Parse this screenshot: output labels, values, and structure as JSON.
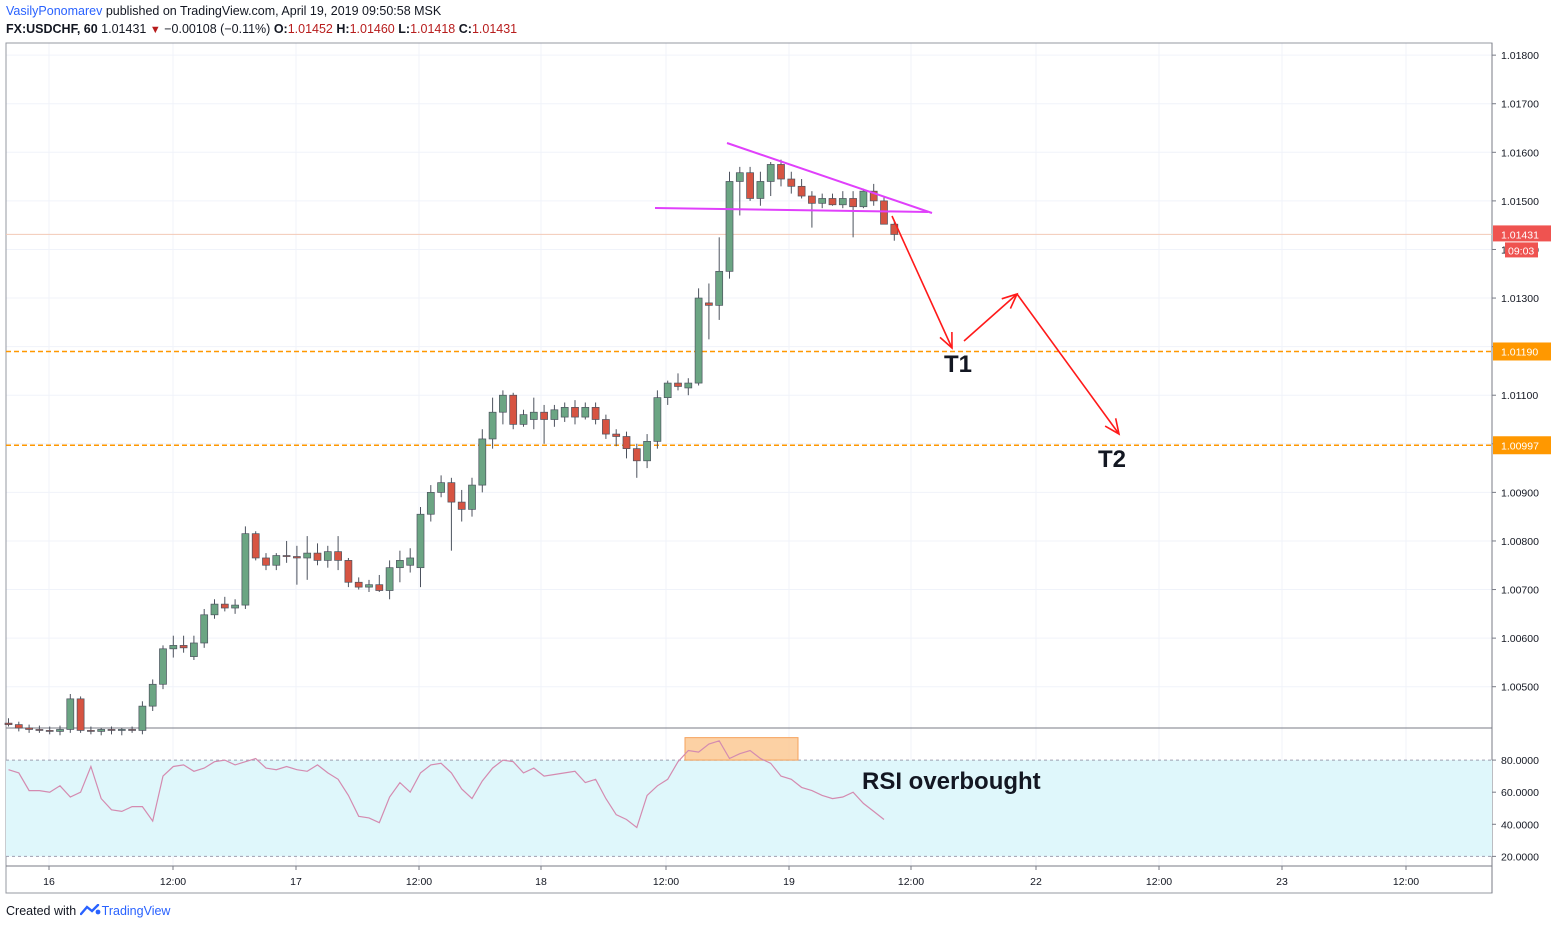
{
  "header": {
    "author": "VasilyPonomarev",
    "published": "published on TradingView.com, April 19, 2019 09:50:58 MSK",
    "symbol": "FX:USDCHF, 60",
    "last": "1.01431",
    "change": "−0.00108 (−0.11%)",
    "o_label": "O:",
    "o": "1.01452",
    "h_label": "H:",
    "h": "1.01460",
    "l_label": "L:",
    "l": "1.01418",
    "c_label": "C:",
    "c": "1.01431"
  },
  "footer": {
    "created": "Created with",
    "brand": "TradingView"
  },
  "chart_data": {
    "type": "candlestick",
    "price_axis": {
      "range": [
        1.00415,
        1.01825
      ],
      "ticks": [
        "1.01800",
        "1.01700",
        "1.01600",
        "1.01500",
        "1.01400",
        "1.01300",
        "1.01200",
        "1.01100",
        "1.01000",
        "1.00900",
        "1.00800",
        "1.00700",
        "1.00600",
        "1.00500"
      ],
      "tick_values": [
        1.018,
        1.017,
        1.016,
        1.015,
        1.014,
        1.013,
        1.012,
        1.011,
        1.01,
        1.009,
        1.008,
        1.007,
        1.006,
        1.005
      ],
      "last_price_tag": "1.01431",
      "countdown_tag": "09:03",
      "level_tags": [
        "1.01190",
        "1.00997"
      ]
    },
    "time_axis": {
      "ticks": [
        "16",
        "12:00",
        "17",
        "12:00",
        "18",
        "12:00",
        "19",
        "12:00",
        "22",
        "12:00",
        "23",
        "12:00"
      ]
    },
    "levels": [
      1.0119,
      1.00997
    ],
    "last_price": 1.01431,
    "candles": [
      [
        1.00425,
        1.00435,
        1.00418,
        1.00422
      ],
      [
        1.00422,
        1.00428,
        1.00408,
        1.00415
      ],
      [
        1.00415,
        1.00422,
        1.00405,
        1.00412
      ],
      [
        1.00412,
        1.0042,
        1.00405,
        1.0041
      ],
      [
        1.0041,
        1.00418,
        1.00402,
        1.00408
      ],
      [
        1.00408,
        1.0042,
        1.004,
        1.00412
      ],
      [
        1.00412,
        1.00485,
        1.00405,
        1.00475
      ],
      [
        1.00475,
        1.0048,
        1.00405,
        1.0041
      ],
      [
        1.0041,
        1.00418,
        1.00402,
        1.00408
      ],
      [
        1.00408,
        1.00415,
        1.004,
        1.00412
      ],
      [
        1.00412,
        1.00418,
        1.00402,
        1.0041
      ],
      [
        1.0041,
        1.00415,
        1.004,
        1.00412
      ],
      [
        1.00412,
        1.00418,
        1.00405,
        1.0041
      ],
      [
        1.0041,
        1.0047,
        1.00402,
        1.0046
      ],
      [
        1.0046,
        1.00515,
        1.0045,
        1.00505
      ],
      [
        1.00505,
        1.00585,
        1.00495,
        1.00578
      ],
      [
        1.00578,
        1.00605,
        1.0056,
        1.00585
      ],
      [
        1.00585,
        1.00605,
        1.0057,
        1.0058
      ],
      [
        1.00562,
        1.00605,
        1.00555,
        1.0059
      ],
      [
        1.0059,
        1.0066,
        1.0058,
        1.00648
      ],
      [
        1.00648,
        1.0068,
        1.0064,
        1.0067
      ],
      [
        1.0067,
        1.00685,
        1.00655,
        1.00662
      ],
      [
        1.00662,
        1.0068,
        1.0065,
        1.00668
      ],
      [
        1.00668,
        1.0083,
        1.0066,
        1.00815
      ],
      [
        1.00815,
        1.0082,
        1.0076,
        1.00765
      ],
      [
        1.00765,
        1.00775,
        1.0074,
        1.0075
      ],
      [
        1.0075,
        1.00775,
        1.0074,
        1.0077
      ],
      [
        1.0077,
        1.008,
        1.00755,
        1.00768
      ],
      [
        1.00768,
        1.0079,
        1.0071,
        1.00765
      ],
      [
        1.00765,
        1.0081,
        1.0072,
        1.00775
      ],
      [
        1.00775,
        1.00795,
        1.0075,
        1.0076
      ],
      [
        1.0076,
        1.0079,
        1.00745,
        1.00778
      ],
      [
        1.00778,
        1.0081,
        1.0074,
        1.0076
      ],
      [
        1.0076,
        1.00765,
        1.00705,
        1.00715
      ],
      [
        1.00715,
        1.00725,
        1.007,
        1.00705
      ],
      [
        1.00705,
        1.0072,
        1.00695,
        1.0071
      ],
      [
        1.0071,
        1.0073,
        1.00695,
        1.00698
      ],
      [
        1.00698,
        1.0076,
        1.0068,
        1.00745
      ],
      [
        1.00745,
        1.0078,
        1.00715,
        1.0076
      ],
      [
        1.0075,
        1.00785,
        1.00735,
        1.00765
      ],
      [
        1.00745,
        1.0087,
        1.00705,
        1.00855
      ],
      [
        1.00855,
        1.00915,
        1.0084,
        1.009
      ],
      [
        1.009,
        1.00935,
        1.0089,
        1.0092
      ],
      [
        1.0092,
        1.0093,
        1.0078,
        1.0088
      ],
      [
        1.0088,
        1.00905,
        1.0084,
        1.00865
      ],
      [
        1.00865,
        1.0093,
        1.0085,
        1.00915
      ],
      [
        1.00915,
        1.0103,
        1.009,
        1.0101
      ],
      [
        1.0101,
        1.01095,
        1.0099,
        1.01065
      ],
      [
        1.01065,
        1.0111,
        1.0104,
        1.011
      ],
      [
        1.011,
        1.01105,
        1.0103,
        1.0104
      ],
      [
        1.0104,
        1.0107,
        1.01035,
        1.0106
      ],
      [
        1.0105,
        1.01095,
        1.0103,
        1.01065
      ],
      [
        1.01065,
        1.0108,
        1.01,
        1.0105
      ],
      [
        1.0105,
        1.0108,
        1.01035,
        1.0107
      ],
      [
        1.01055,
        1.01085,
        1.01045,
        1.01075
      ],
      [
        1.01075,
        1.0109,
        1.0104,
        1.01055
      ],
      [
        1.01055,
        1.01085,
        1.0105,
        1.01075
      ],
      [
        1.01075,
        1.01085,
        1.0104,
        1.0105
      ],
      [
        1.0105,
        1.0106,
        1.0101,
        1.0102
      ],
      [
        1.0102,
        1.0103,
        1.00995,
        1.01015
      ],
      [
        1.01015,
        1.01025,
        1.0097,
        1.0099
      ],
      [
        1.0099,
        1.01,
        1.0093,
        1.00965
      ],
      [
        1.00965,
        1.0102,
        1.0095,
        1.01005
      ],
      [
        1.01005,
        1.0111,
        1.0099,
        1.01095
      ],
      [
        1.01095,
        1.0113,
        1.0108,
        1.01125
      ],
      [
        1.01125,
        1.01145,
        1.0111,
        1.01118
      ],
      [
        1.01115,
        1.01135,
        1.011,
        1.01125
      ],
      [
        1.01125,
        1.0132,
        1.0112,
        1.013
      ],
      [
        1.0129,
        1.0133,
        1.01215,
        1.01285
      ],
      [
        1.01285,
        1.01425,
        1.01255,
        1.01355
      ],
      [
        1.01355,
        1.0156,
        1.0134,
        1.0154
      ],
      [
        1.0154,
        1.0157,
        1.0147,
        1.01558
      ],
      [
        1.01558,
        1.0157,
        1.015,
        1.01505
      ],
      [
        1.01505,
        1.0156,
        1.0149,
        1.0154
      ],
      [
        1.0154,
        1.0158,
        1.0151,
        1.01575
      ],
      [
        1.01575,
        1.01585,
        1.0153,
        1.01545
      ],
      [
        1.01545,
        1.0156,
        1.01515,
        1.0153
      ],
      [
        1.0153,
        1.01545,
        1.01505,
        1.0151
      ],
      [
        1.0151,
        1.0152,
        1.01445,
        1.01495
      ],
      [
        1.01495,
        1.01515,
        1.01485,
        1.01505
      ],
      [
        1.01505,
        1.01515,
        1.0149,
        1.01492
      ],
      [
        1.01492,
        1.0152,
        1.01485,
        1.01505
      ],
      [
        1.01505,
        1.0152,
        1.01425,
        1.01488
      ],
      [
        1.01488,
        1.01525,
        1.01485,
        1.0152
      ],
      [
        1.0152,
        1.01535,
        1.0149,
        1.015
      ],
      [
        1.015,
        1.0151,
        1.01455,
        1.01452
      ],
      [
        1.01452,
        1.0146,
        1.01418,
        1.01431
      ]
    ],
    "rsi": {
      "range": [
        14,
        100
      ],
      "ticks": [
        "80.0000",
        "60.0000",
        "40.0000",
        "20.0000"
      ],
      "tick_values": [
        80,
        60,
        40,
        20
      ],
      "band": [
        20,
        80
      ],
      "values": [
        74,
        72,
        61,
        61,
        60,
        64,
        57,
        60,
        76,
        56,
        49,
        48,
        51,
        51,
        42,
        70,
        76,
        77,
        73,
        75,
        79,
        80,
        77,
        79,
        81,
        75,
        74,
        76,
        74,
        73,
        77,
        72,
        68,
        58,
        45,
        44,
        41,
        57,
        66,
        60,
        72,
        77,
        78,
        72,
        62,
        56,
        67,
        75,
        80,
        79,
        72,
        75,
        70,
        71,
        72,
        73,
        66,
        68,
        56,
        46,
        43,
        38,
        58,
        64,
        68,
        79,
        86,
        85,
        90,
        92,
        81,
        84,
        86,
        81,
        78,
        70,
        68,
        63,
        61,
        58,
        56,
        57,
        60,
        53,
        48,
        43
      ],
      "overbought_zone_label": "RSI overbought"
    },
    "annotations": {
      "target1": "T1",
      "target2": "T2",
      "rsi_note": "RSI overbought"
    },
    "colors": {
      "up": "#6ba583",
      "down": "#d75442",
      "wick": "#4c525e",
      "level": "#ff9800",
      "pattern": "#e040fb",
      "arrow": "#ff1a1a",
      "rsi_line": "#d48bb0",
      "rsi_fill": "#dff7fb",
      "last_tag": "#ef5350",
      "overbought_fill": "#fcc994"
    }
  }
}
